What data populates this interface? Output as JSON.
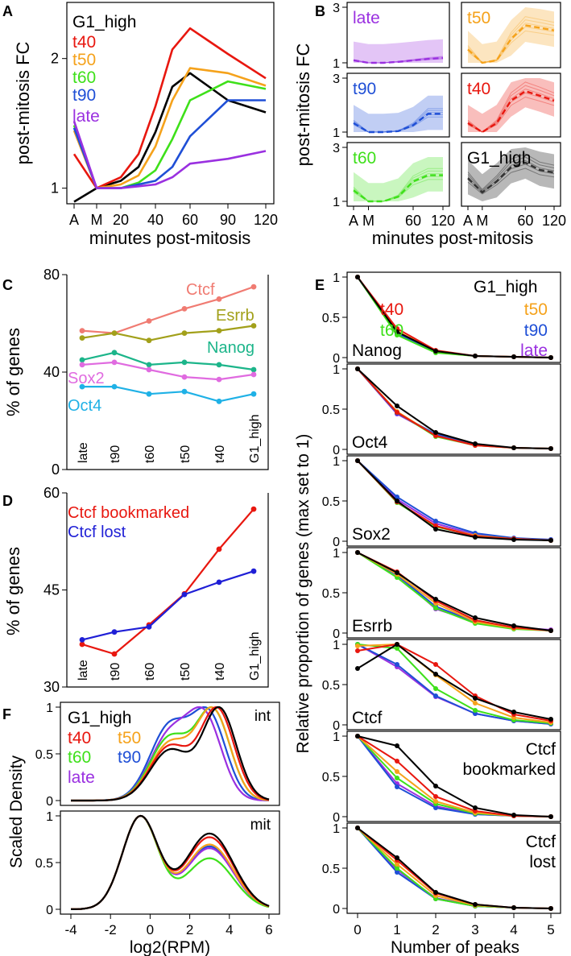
{
  "colors": {
    "G1_high": "#000000",
    "t40": "#e8170f",
    "t50": "#f5a21b",
    "t60": "#3ee01a",
    "t90": "#1f4fd6",
    "late": "#9a30e0",
    "Ctcf": "#f07b72",
    "Esrrb": "#a2a01a",
    "Nanog": "#1cb58a",
    "Sox2": "#e06be0",
    "Oct4": "#1fb1e6",
    "Ctcf bookmarked": "#e8170f",
    "Ctcf lost": "#1f1fd6"
  },
  "chart_data": [
    {
      "panel": "A",
      "type": "line",
      "xlabel": "minutes post-mitosis",
      "ylabel": "post-mitosis FC",
      "x": [
        "A",
        "M",
        "20",
        "30",
        "40",
        "50",
        "60",
        "90",
        "120"
      ],
      "x_ticks": [
        "A",
        "M",
        "20",
        "40",
        "60",
        "90",
        "120"
      ],
      "y_ticks": [
        "1",
        "2"
      ],
      "y_scale": "log",
      "ylim": [
        0.92,
        2.7
      ],
      "legend": [
        "G1_high",
        "t40",
        "t50",
        "t60",
        "t90",
        "late"
      ],
      "series": [
        {
          "name": "G1_high",
          "values": [
            0.93,
            1.0,
            1.04,
            1.12,
            1.35,
            1.72,
            1.85,
            1.6,
            1.5
          ]
        },
        {
          "name": "t40",
          "values": [
            1.2,
            1.0,
            1.06,
            1.2,
            1.55,
            2.1,
            2.35,
            2.05,
            1.8
          ]
        },
        {
          "name": "t50",
          "values": [
            1.36,
            1.0,
            1.02,
            1.07,
            1.25,
            1.6,
            1.9,
            1.85,
            1.73
          ]
        },
        {
          "name": "t60",
          "values": [
            1.4,
            1.0,
            1.0,
            1.03,
            1.1,
            1.3,
            1.6,
            1.77,
            1.7
          ]
        },
        {
          "name": "t90",
          "values": [
            1.38,
            1.0,
            1.0,
            1.02,
            1.04,
            1.12,
            1.32,
            1.6,
            1.6
          ]
        },
        {
          "name": "late",
          "values": [
            1.43,
            1.0,
            1.0,
            1.01,
            1.02,
            1.06,
            1.14,
            1.17,
            1.22
          ]
        }
      ]
    },
    {
      "panel": "B",
      "type": "line",
      "xlabel": "minutes post-mitosis",
      "ylabel": "post-mitosis FC",
      "x": [
        "A",
        "M",
        "20",
        "40",
        "60",
        "90",
        "120"
      ],
      "x_ticks": [
        "A",
        "M",
        "60",
        "120"
      ],
      "y_ticks": [
        "1",
        "3"
      ],
      "facets": [
        {
          "name": "late",
          "median": [
            1.05,
            1.0,
            1.0,
            1.02,
            1.05,
            1.08,
            1.1
          ]
        },
        {
          "name": "t50",
          "median": [
            1.3,
            1.0,
            1.05,
            1.6,
            2.1,
            2.0,
            1.9
          ]
        },
        {
          "name": "t90",
          "median": [
            1.2,
            1.0,
            1.0,
            1.02,
            1.15,
            1.45,
            1.45
          ]
        },
        {
          "name": "t40",
          "median": [
            1.2,
            1.0,
            1.2,
            1.9,
            2.3,
            2.1,
            1.9
          ]
        },
        {
          "name": "t60",
          "median": [
            1.25,
            1.0,
            1.0,
            1.1,
            1.5,
            1.7,
            1.7
          ]
        },
        {
          "name": "G1_high",
          "median": [
            1.6,
            1.2,
            1.5,
            2.0,
            2.2,
            1.9,
            1.8
          ]
        }
      ]
    },
    {
      "panel": "C",
      "type": "line",
      "ylabel": "% of genes",
      "categories": [
        "late",
        "t90",
        "t60",
        "t50",
        "t40",
        "G1_high"
      ],
      "y_ticks": [
        "0",
        "40",
        "80"
      ],
      "ylim": [
        0,
        80
      ],
      "series": [
        {
          "name": "Ctcf",
          "values": [
            57,
            56,
            61,
            66,
            70,
            75
          ]
        },
        {
          "name": "Esrrb",
          "values": [
            54,
            56,
            53,
            56,
            57,
            59
          ]
        },
        {
          "name": "Nanog",
          "values": [
            45,
            48,
            43,
            44,
            43,
            41
          ]
        },
        {
          "name": "Sox2",
          "values": [
            43,
            44,
            41,
            38,
            37,
            39
          ]
        },
        {
          "name": "Oct4",
          "values": [
            34,
            34,
            31,
            32,
            28,
            31
          ]
        }
      ]
    },
    {
      "panel": "D",
      "type": "line",
      "ylabel": "% of genes",
      "categories": [
        "late",
        "t90",
        "t60",
        "t50",
        "t40",
        "G1_high"
      ],
      "y_ticks": [
        "30",
        "45",
        "60"
      ],
      "ylim": [
        30,
        60
      ],
      "series": [
        {
          "name": "Ctcf bookmarked",
          "values": [
            36.6,
            35.1,
            39.6,
            44.4,
            51.3,
            57.5
          ]
        },
        {
          "name": "Ctcf lost",
          "values": [
            37.3,
            38.5,
            39.3,
            44.3,
            46.2,
            47.9
          ]
        }
      ]
    },
    {
      "panel": "E",
      "type": "line",
      "xlabel": "Number of peaks",
      "ylabel": "Relative proportion of genes (max set to 1)",
      "x": [
        0,
        1,
        2,
        3,
        4,
        5
      ],
      "y_ticks": [
        "0",
        "0.5",
        "1"
      ],
      "legend": [
        "G1_high",
        "t40",
        "t50",
        "t60",
        "t90",
        "late"
      ],
      "facets": [
        {
          "name": "Nanog",
          "series": [
            {
              "name": "G1_high",
              "values": [
                1,
                0.32,
                0.08,
                0.02,
                0.01,
                0.0
              ]
            },
            {
              "name": "t40",
              "values": [
                1,
                0.36,
                0.09,
                0.02,
                0.01,
                0.0
              ]
            },
            {
              "name": "t50",
              "values": [
                1,
                0.33,
                0.08,
                0.02,
                0.01,
                0.0
              ]
            },
            {
              "name": "t60",
              "values": [
                1,
                0.28,
                0.06,
                0.02,
                0.01,
                0.0
              ]
            },
            {
              "name": "t90",
              "values": [
                1,
                0.3,
                0.07,
                0.02,
                0.01,
                0.0
              ]
            },
            {
              "name": "late",
              "values": [
                1,
                0.29,
                0.07,
                0.02,
                0.01,
                0.0
              ]
            }
          ]
        },
        {
          "name": "Oct4",
          "series": [
            {
              "name": "G1_high",
              "values": [
                1,
                0.54,
                0.21,
                0.07,
                0.02,
                0.01
              ]
            },
            {
              "name": "t40",
              "values": [
                1,
                0.46,
                0.17,
                0.05,
                0.02,
                0.01
              ]
            },
            {
              "name": "t50",
              "values": [
                1,
                0.47,
                0.17,
                0.05,
                0.02,
                0.01
              ]
            },
            {
              "name": "t60",
              "values": [
                1,
                0.46,
                0.16,
                0.05,
                0.02,
                0.01
              ]
            },
            {
              "name": "t90",
              "values": [
                1,
                0.45,
                0.19,
                0.06,
                0.02,
                0.01
              ]
            },
            {
              "name": "late",
              "values": [
                1,
                0.44,
                0.18,
                0.06,
                0.02,
                0.01
              ]
            }
          ]
        },
        {
          "name": "Sox2",
          "series": [
            {
              "name": "G1_high",
              "values": [
                1,
                0.5,
                0.15,
                0.05,
                0.02,
                0.01
              ]
            },
            {
              "name": "t40",
              "values": [
                1,
                0.49,
                0.19,
                0.06,
                0.03,
                0.01
              ]
            },
            {
              "name": "t50",
              "values": [
                1,
                0.49,
                0.19,
                0.07,
                0.03,
                0.01
              ]
            },
            {
              "name": "t60",
              "values": [
                1,
                0.48,
                0.18,
                0.07,
                0.03,
                0.01
              ]
            },
            {
              "name": "t90",
              "values": [
                1,
                0.55,
                0.25,
                0.1,
                0.04,
                0.02
              ]
            },
            {
              "name": "late",
              "values": [
                1,
                0.52,
                0.22,
                0.08,
                0.03,
                0.02
              ]
            }
          ]
        },
        {
          "name": "Esrrb",
          "series": [
            {
              "name": "G1_high",
              "values": [
                1,
                0.75,
                0.42,
                0.19,
                0.09,
                0.03
              ]
            },
            {
              "name": "t40",
              "values": [
                1,
                0.76,
                0.4,
                0.16,
                0.07,
                0.03
              ]
            },
            {
              "name": "t50",
              "values": [
                1,
                0.73,
                0.37,
                0.14,
                0.06,
                0.03
              ]
            },
            {
              "name": "t60",
              "values": [
                1,
                0.69,
                0.31,
                0.12,
                0.05,
                0.03
              ]
            },
            {
              "name": "t90",
              "values": [
                1,
                0.72,
                0.33,
                0.14,
                0.06,
                0.03
              ]
            },
            {
              "name": "late",
              "values": [
                1,
                0.72,
                0.3,
                0.14,
                0.07,
                0.04
              ]
            }
          ]
        },
        {
          "name": "Ctcf",
          "series": [
            {
              "name": "G1_high",
              "values": [
                0.7,
                1.0,
                0.63,
                0.33,
                0.16,
                0.07
              ]
            },
            {
              "name": "t40",
              "values": [
                0.92,
                1.0,
                0.75,
                0.36,
                0.13,
                0.05
              ]
            },
            {
              "name": "t50",
              "values": [
                0.98,
                1.0,
                0.62,
                0.27,
                0.09,
                0.03
              ]
            },
            {
              "name": "t60",
              "values": [
                1.0,
                0.95,
                0.45,
                0.18,
                0.06,
                0.02
              ]
            },
            {
              "name": "t90",
              "values": [
                1.0,
                0.75,
                0.36,
                0.14,
                0.05,
                0.01
              ]
            },
            {
              "name": "late",
              "values": [
                1.0,
                0.72,
                0.35,
                0.14,
                0.05,
                0.01
              ]
            }
          ]
        },
        {
          "name": "Ctcf bookmarked",
          "series": [
            {
              "name": "G1_high",
              "values": [
                1,
                0.88,
                0.38,
                0.11,
                0.02,
                0.0
              ]
            },
            {
              "name": "t40",
              "values": [
                1,
                0.69,
                0.25,
                0.07,
                0.01,
                0.0
              ]
            },
            {
              "name": "t50",
              "values": [
                1,
                0.56,
                0.19,
                0.05,
                0.01,
                0.0
              ]
            },
            {
              "name": "t60",
              "values": [
                1,
                0.48,
                0.16,
                0.04,
                0.01,
                0.0
              ]
            },
            {
              "name": "t90",
              "values": [
                1,
                0.37,
                0.11,
                0.03,
                0.01,
                0.0
              ]
            },
            {
              "name": "late",
              "values": [
                1,
                0.41,
                0.13,
                0.03,
                0.01,
                0.0
              ]
            }
          ]
        },
        {
          "name": "Ctcf lost",
          "series": [
            {
              "name": "G1_high",
              "values": [
                1,
                0.63,
                0.2,
                0.05,
                0.01,
                0.0
              ]
            },
            {
              "name": "t40",
              "values": [
                1,
                0.6,
                0.19,
                0.05,
                0.01,
                0.0
              ]
            },
            {
              "name": "t50",
              "values": [
                1,
                0.55,
                0.16,
                0.04,
                0.01,
                0.0
              ]
            },
            {
              "name": "t60",
              "values": [
                1,
                0.5,
                0.12,
                0.03,
                0.01,
                0.0
              ]
            },
            {
              "name": "t90",
              "values": [
                1,
                0.45,
                0.12,
                0.03,
                0.01,
                0.0
              ]
            },
            {
              "name": "late",
              "values": [
                1,
                0.48,
                0.13,
                0.03,
                0.01,
                0.0
              ]
            }
          ]
        }
      ]
    },
    {
      "panel": "F",
      "type": "area",
      "xlabel": "log2(RPM)",
      "ylabel": "Scaled Density",
      "x_ticks": [
        "-4",
        "-2",
        "0",
        "2",
        "4",
        "6"
      ],
      "xlim": [
        -4,
        6
      ],
      "y_ticks": [
        "0",
        "0.5",
        "1"
      ],
      "legend": [
        "G1_high",
        "t40",
        "t50",
        "t60",
        "t90",
        "late"
      ],
      "facets": [
        {
          "name": "int",
          "series": [
            {
              "name": "G1_high",
              "peak_x": 3.5,
              "shoulder_x": 1.0,
              "shoulder_h": 0.55
            },
            {
              "name": "t40",
              "peak_x": 3.4,
              "shoulder_x": 1.0,
              "shoulder_h": 0.6
            },
            {
              "name": "t50",
              "peak_x": 3.2,
              "shoulder_x": 1.0,
              "shoulder_h": 0.65
            },
            {
              "name": "t60",
              "peak_x": 3.2,
              "shoulder_x": 1.0,
              "shoulder_h": 0.72
            },
            {
              "name": "t90",
              "peak_x": 3.0,
              "shoulder_x": 1.0,
              "shoulder_h": 0.92
            },
            {
              "name": "late",
              "peak_x": 2.8,
              "shoulder_x": 1.0,
              "shoulder_h": 0.85
            }
          ]
        },
        {
          "name": "mit",
          "series": [
            {
              "name": "G1_high",
              "peak_x": -0.5,
              "shoulder_x": 3.0,
              "shoulder_h": 0.82
            },
            {
              "name": "t40",
              "peak_x": -0.5,
              "shoulder_x": 3.0,
              "shoulder_h": 0.78
            },
            {
              "name": "t50",
              "peak_x": -0.5,
              "shoulder_x": 3.0,
              "shoulder_h": 0.7
            },
            {
              "name": "t60",
              "peak_x": -0.5,
              "shoulder_x": 3.0,
              "shoulder_h": 0.55
            },
            {
              "name": "t90",
              "peak_x": -0.5,
              "shoulder_x": 3.0,
              "shoulder_h": 0.68
            },
            {
              "name": "late",
              "peak_x": -0.5,
              "shoulder_x": 3.0,
              "shoulder_h": 0.66
            }
          ]
        }
      ]
    }
  ]
}
